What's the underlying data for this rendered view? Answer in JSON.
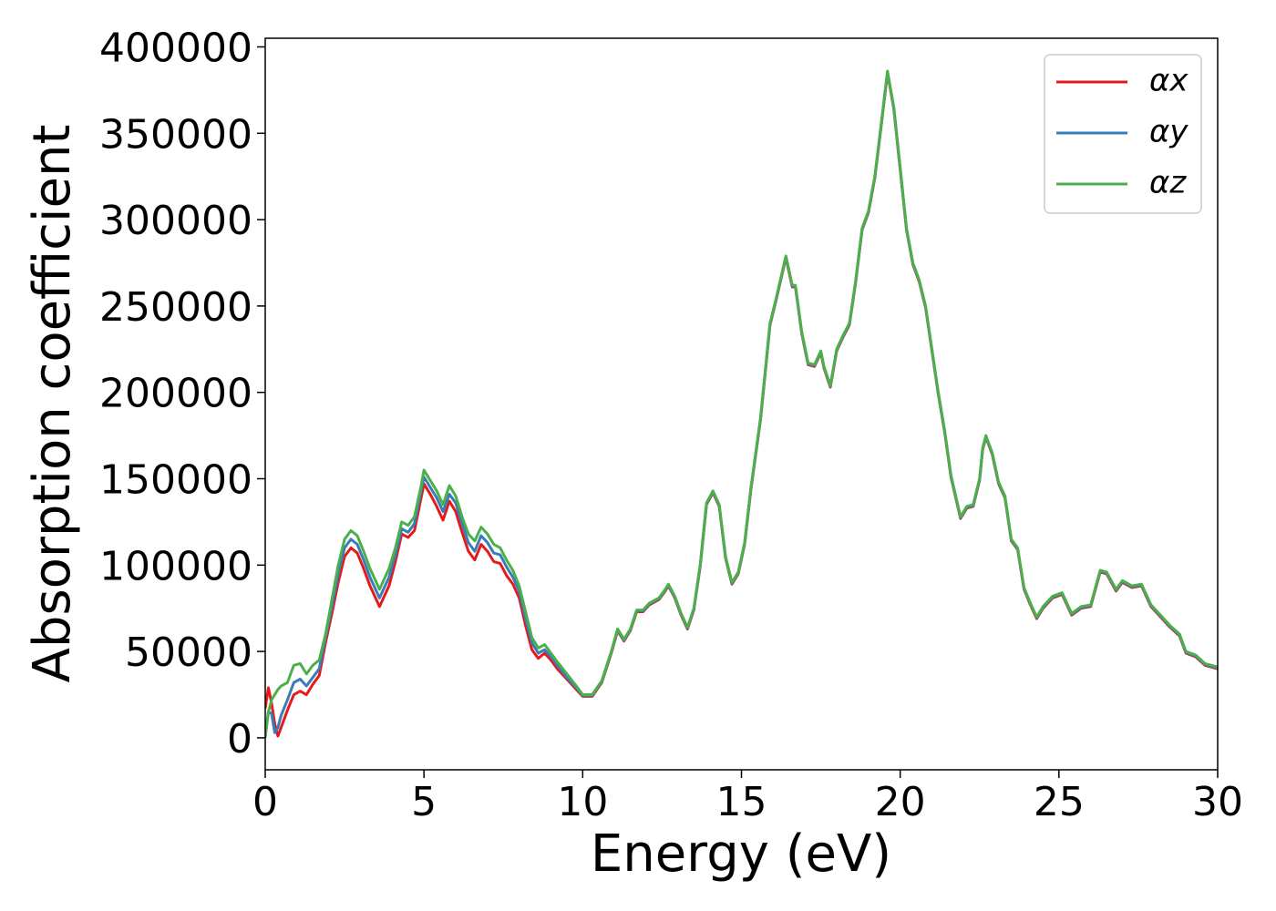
{
  "chart_data": {
    "type": "line",
    "xlabel": "Energy (eV)",
    "ylabel": "Absorption coefficient",
    "xlim": [
      0,
      30
    ],
    "xticks": [
      0,
      5,
      10,
      15,
      20,
      25,
      30
    ],
    "ylim": [
      -18500,
      405000
    ],
    "yticks": [
      0,
      50000,
      100000,
      150000,
      200000,
      250000,
      300000,
      350000,
      400000
    ],
    "grid": false,
    "legend": "upper right",
    "x": [
      0,
      0.1,
      0.2,
      0.3,
      0.4,
      0.5,
      0.7,
      0.9,
      1.1,
      1.3,
      1.5,
      1.7,
      1.9,
      2.1,
      2.3,
      2.5,
      2.7,
      2.9,
      3.1,
      3.3,
      3.6,
      3.9,
      4.1,
      4.3,
      4.5,
      4.7,
      4.9,
      5.0,
      5.2,
      5.4,
      5.6,
      5.8,
      6.0,
      6.2,
      6.4,
      6.6,
      6.8,
      7.0,
      7.2,
      7.4,
      7.6,
      7.8,
      8.0,
      8.2,
      8.4,
      8.6,
      8.8,
      9.0,
      9.2,
      9.5,
      9.8,
      10.0,
      10.3,
      10.6,
      10.9,
      11.1,
      11.3,
      11.5,
      11.7,
      11.9,
      12.1,
      12.4,
      12.6,
      12.7,
      12.9,
      13.1,
      13.3,
      13.5,
      13.7,
      13.9,
      14.1,
      14.3,
      14.5,
      14.7,
      14.9,
      15.1,
      15.3,
      15.6,
      15.9,
      16.1,
      16.4,
      16.6,
      16.7,
      16.9,
      17.1,
      17.3,
      17.5,
      17.6,
      17.8,
      18.0,
      18.2,
      18.4,
      18.6,
      18.8,
      19.0,
      19.2,
      19.4,
      19.6,
      19.8,
      20.0,
      20.2,
      20.4,
      20.6,
      20.8,
      21.0,
      21.2,
      21.4,
      21.6,
      21.9,
      22.1,
      22.3,
      22.5,
      22.6,
      22.7,
      22.9,
      23.1,
      23.3,
      23.5,
      23.7,
      23.9,
      24.1,
      24.3,
      24.5,
      24.8,
      25.1,
      25.4,
      25.7,
      26.0,
      26.3,
      26.5,
      26.8,
      27.0,
      27.3,
      27.6,
      27.9,
      28.2,
      28.5,
      28.8,
      29.0,
      29.3,
      29.6,
      30.0
    ],
    "series": [
      {
        "name": "αx",
        "color": "#e41a1c",
        "values": [
          17000,
          29000,
          20000,
          8000,
          1000,
          6000,
          16000,
          25000,
          27000,
          25000,
          31000,
          36000,
          55000,
          72000,
          90000,
          105000,
          110000,
          107000,
          98000,
          88000,
          76000,
          88000,
          102000,
          118000,
          116000,
          120000,
          138000,
          147000,
          141000,
          134000,
          126000,
          137000,
          131000,
          119000,
          108000,
          103000,
          112000,
          108000,
          102000,
          101000,
          94000,
          89000,
          81000,
          65000,
          51000,
          46000,
          49000,
          45000,
          40000,
          34000,
          28000,
          24000,
          24000,
          32000,
          49000,
          62000,
          56000,
          62000,
          73000,
          73000,
          77000,
          80000,
          85000,
          88000,
          81000,
          71000,
          63000,
          74000,
          99000,
          135000,
          142000,
          134000,
          104000,
          89000,
          95000,
          112000,
          144000,
          184000,
          239000,
          254000,
          278000,
          261000,
          261000,
          234000,
          216000,
          215000,
          223000,
          214000,
          203000,
          224000,
          232000,
          239000,
          264000,
          294000,
          304000,
          324000,
          354000,
          385000,
          364000,
          329000,
          294000,
          274000,
          264000,
          249000,
          224000,
          199000,
          177000,
          151000,
          127000,
          133000,
          134000,
          149000,
          167000,
          174000,
          164000,
          147000,
          139000,
          114000,
          109000,
          86000,
          77000,
          69000,
          75000,
          81000,
          83000,
          71000,
          75000,
          76000,
          96000,
          95000,
          85000,
          90000,
          87000,
          88000,
          76000,
          70000,
          64000,
          59000,
          49000,
          47000,
          42000,
          40000
        ]
      },
      {
        "name": "αy",
        "color": "#377eb8",
        "values": [
          2000,
          15000,
          14000,
          3000,
          6000,
          13000,
          22000,
          32000,
          34000,
          30000,
          35000,
          40000,
          58000,
          76000,
          95000,
          110000,
          115000,
          112000,
          103000,
          93000,
          81000,
          93000,
          106000,
          121000,
          119000,
          124000,
          142000,
          151000,
          145000,
          139000,
          131000,
          141000,
          136000,
          124000,
          113000,
          108000,
          117000,
          113000,
          107000,
          106000,
          99000,
          93000,
          85000,
          69000,
          55000,
          49000,
          51000,
          47000,
          42000,
          35000,
          29000,
          24500,
          24500,
          32500,
          49500,
          62500,
          56500,
          62500,
          73500,
          73500,
          77500,
          80500,
          85500,
          88500,
          81500,
          71500,
          63500,
          74500,
          99500,
          135500,
          142500,
          134500,
          104500,
          89500,
          95500,
          112500,
          144500,
          184500,
          239500,
          254500,
          278500,
          261500,
          261500,
          234500,
          216500,
          215500,
          223500,
          214500,
          203500,
          224500,
          232500,
          239500,
          264500,
          294500,
          304500,
          324500,
          354500,
          385500,
          364500,
          329500,
          294500,
          274500,
          264500,
          249500,
          224500,
          199500,
          177500,
          151500,
          127500,
          133500,
          134500,
          149500,
          167500,
          174500,
          164500,
          147500,
          139500,
          114500,
          109500,
          86500,
          77500,
          69500,
          75500,
          81500,
          83500,
          71500,
          75500,
          76500,
          96500,
          95500,
          85500,
          90500,
          87500,
          88500,
          76500,
          70500,
          64500,
          59500,
          49500,
          47500,
          42500,
          40500
        ]
      },
      {
        "name": "αz",
        "color": "#4daf4a",
        "values": [
          0,
          15000,
          22000,
          25000,
          28000,
          30000,
          32000,
          42000,
          43000,
          37000,
          42000,
          45000,
          60000,
          80000,
          100000,
          115000,
          120000,
          117000,
          108000,
          98000,
          86000,
          98000,
          110000,
          125000,
          123000,
          128000,
          145000,
          155000,
          149000,
          143000,
          135000,
          146000,
          140000,
          128000,
          118000,
          114000,
          122000,
          118000,
          112000,
          110000,
          103000,
          97000,
          88000,
          73000,
          58000,
          52000,
          54000,
          49000,
          44000,
          37000,
          30000,
          25000,
          25000,
          33000,
          50000,
          63000,
          57000,
          63000,
          74000,
          74000,
          78000,
          81000,
          86000,
          89000,
          82000,
          72000,
          64000,
          75000,
          100000,
          136000,
          143000,
          135000,
          105000,
          90000,
          96000,
          113000,
          145000,
          185000,
          240000,
          255000,
          279000,
          262000,
          262000,
          235000,
          217000,
          216000,
          224000,
          215000,
          204000,
          225000,
          233000,
          240000,
          265000,
          295000,
          305000,
          325000,
          355000,
          386000,
          365000,
          330000,
          295000,
          275000,
          265000,
          250000,
          225000,
          200000,
          178000,
          152000,
          128000,
          134000,
          135000,
          150000,
          168000,
          175000,
          165000,
          148000,
          140000,
          115000,
          110000,
          87000,
          78000,
          70000,
          76000,
          82000,
          84000,
          72000,
          76000,
          77000,
          97000,
          96000,
          86000,
          91000,
          88000,
          89000,
          77000,
          71000,
          65000,
          60000,
          50000,
          48000,
          43000,
          41000
        ]
      }
    ]
  }
}
